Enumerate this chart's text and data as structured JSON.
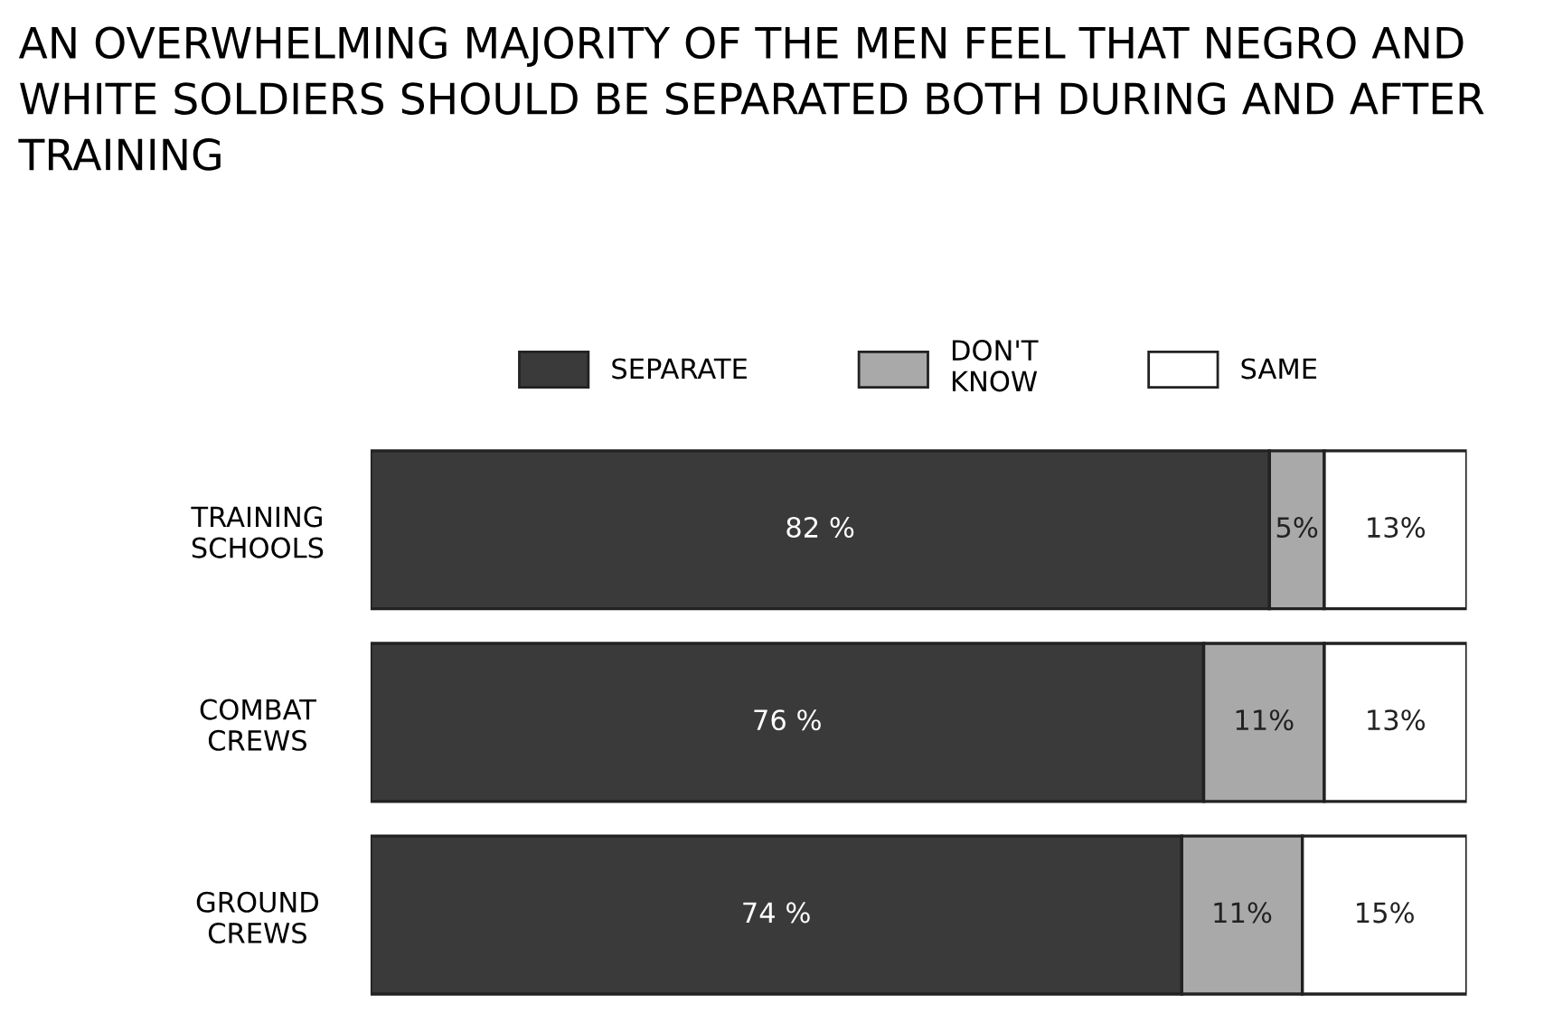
{
  "chart_data": {
    "type": "bar",
    "orientation": "horizontal",
    "stacked": true,
    "title": "AN OVERWHELMING MAJORITY OF THE MEN FEEL THAT NEGRO AND WHITE SOLDIERS SHOULD BE SEPARATED BOTH DURING AND AFTER TRAINING",
    "categories": [
      "TRAINING\nSCHOOLS",
      "COMBAT\nCREWS",
      "GROUND\nCREWS"
    ],
    "series": [
      {
        "name": "SEPARATE",
        "color": "#3a3a3a",
        "values": [
          82,
          76,
          74
        ],
        "value_labels": [
          "82 %",
          "76 %",
          "74 %"
        ]
      },
      {
        "name": "DON'T\nKNOW",
        "color": "#a9a9a9",
        "values": [
          5,
          11,
          11
        ],
        "value_labels": [
          "5%",
          "11%",
          "11%"
        ]
      },
      {
        "name": "SAME",
        "color": "#ffffff",
        "values": [
          13,
          13,
          15
        ],
        "value_labels": [
          "13%",
          "13%",
          "15%"
        ]
      }
    ],
    "legend": "top",
    "grid": false
  }
}
